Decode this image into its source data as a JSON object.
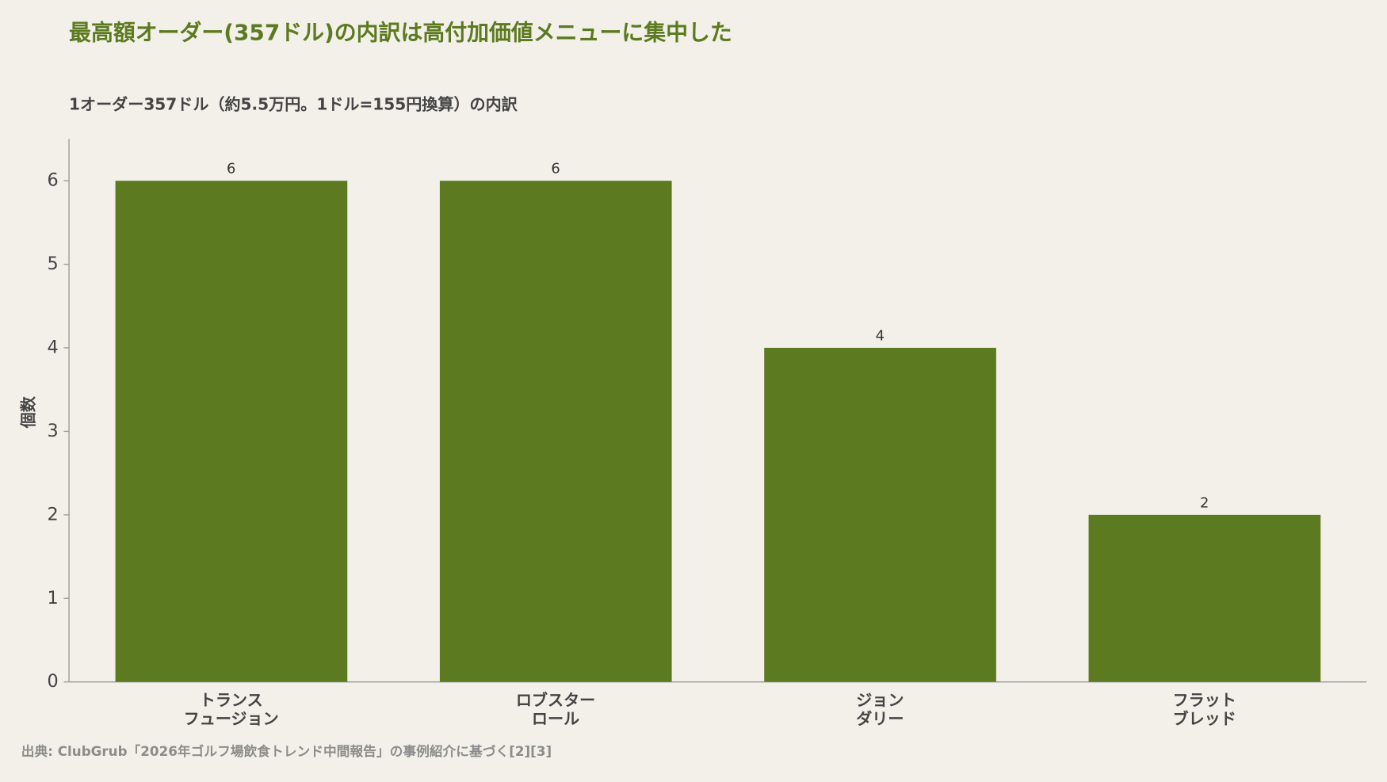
{
  "chart_data": {
    "type": "bar",
    "title": "最高額オーダー(357ドル)の内訳は高付加価値メニューに集中した",
    "subtitle": "1オーダー357ドル（約5.5万円。1ドル=155円換算）の内訳",
    "y_label": "個数",
    "categories": [
      [
        "トランス",
        "フュージョン"
      ],
      [
        "ロブスター",
        "ロール"
      ],
      [
        "ジョン",
        "ダリー"
      ],
      [
        "フラット",
        "ブレッド"
      ]
    ],
    "values": [
      6,
      6,
      4,
      2
    ],
    "color": "#5c7a1f",
    "ylim": [
      0,
      6.5
    ],
    "yticks": [
      0,
      1,
      2,
      3,
      4,
      5,
      6
    ],
    "grid": false,
    "source": "出典: ClubGrub「2026年ゴルフ場飲食トレンド中間報告」の事例紹介に基づく[2][3]"
  }
}
